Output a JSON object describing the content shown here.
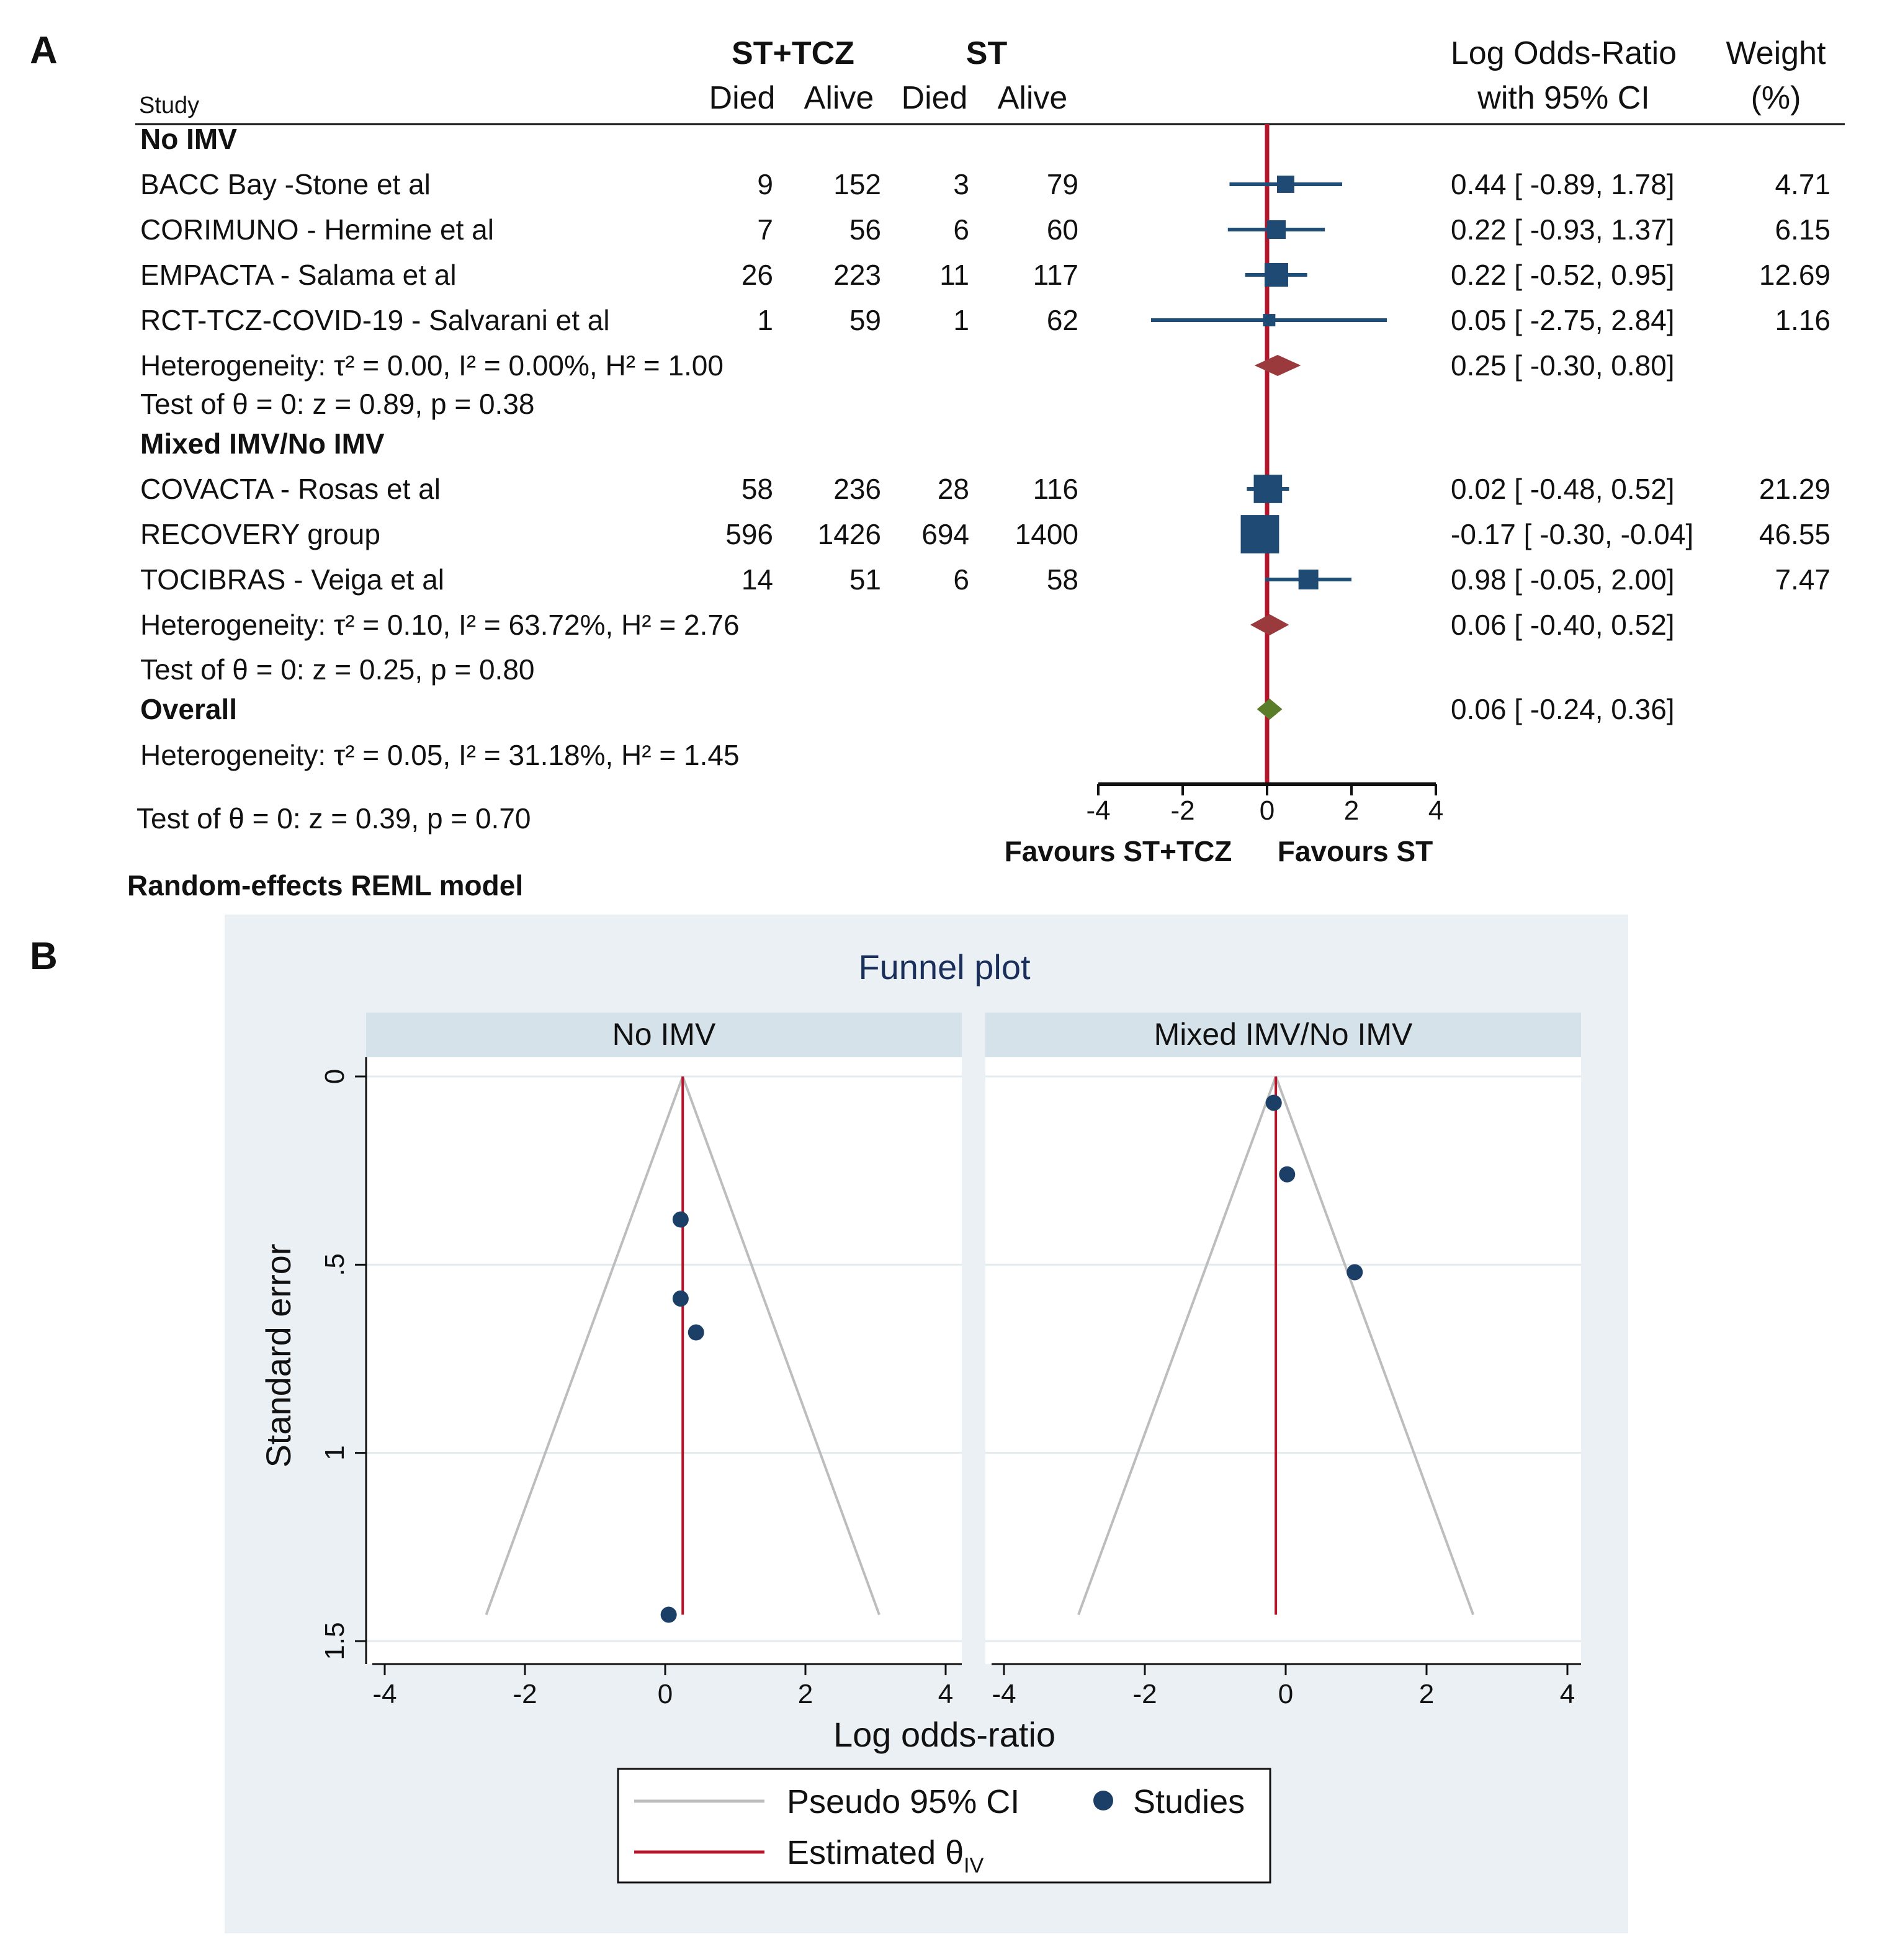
{
  "panelA": {
    "letter": "A",
    "group_header_1": "ST+TCZ",
    "group_header_2": "ST",
    "col_study": "Study",
    "col_died_1": "Died",
    "col_alive_1": "Alive",
    "col_died_2": "Died",
    "col_alive_2": "Alive",
    "col_lor_line1": "Log Odds-Ratio",
    "col_lor_line2": "with 95% CI",
    "col_weight_line1": "Weight",
    "col_weight_line2": "(%)",
    "axis_ticks": [
      "-4",
      "-2",
      "0",
      "2",
      "4"
    ],
    "favours_left": "Favours ST+TCZ",
    "favours_right": "Favours ST",
    "model_note": "Random-effects REML model"
  },
  "panelB": {
    "letter": "B",
    "title": "Funnel plot",
    "ylabel": "Standard error",
    "xlabel": "Log odds-ratio",
    "y_ticks": [
      "0",
      ".5",
      "1",
      "1.5"
    ],
    "x_ticks": [
      "-4",
      "-2",
      "0",
      "2",
      "4"
    ],
    "legend": {
      "ci": "Pseudo 95% CI",
      "studies": "Studies",
      "estimated": "Estimated θ",
      "estimated_sub": "IV"
    },
    "colors": {
      "background": "#eaf0f3",
      "strip": "#d6e2e9",
      "point": "#1b3f66",
      "line": "#b5152b",
      "ci": "#bdbdbd"
    }
  },
  "chart_data": [
    {
      "type": "forest",
      "xlim": [
        -4,
        4
      ],
      "xticks": [
        -4,
        -2,
        0,
        2,
        4
      ],
      "xlabel_left": "Favours ST+TCZ",
      "xlabel_right": "Favours ST",
      "colors": {
        "study": "#1f4e79",
        "subgroup": "#9b3a3d",
        "overall": "#5a7d2a",
        "null_line": "#b5152b"
      },
      "groups": [
        {
          "name": "No IMV",
          "studies": [
            {
              "study": "BACC Bay -Stone et al",
              "died_tcz": "9",
              "alive_tcz": "152",
              "died_st": "3",
              "alive_st": "79",
              "lor": 0.44,
              "lo": -0.89,
              "hi": 1.78,
              "ci_text": "0.44 [ -0.89,   1.78]",
              "weight": 4.71,
              "weight_text": "4.71"
            },
            {
              "study": "CORIMUNO - Hermine et al",
              "died_tcz": "7",
              "alive_tcz": "56",
              "died_st": "6",
              "alive_st": "60",
              "lor": 0.22,
              "lo": -0.93,
              "hi": 1.37,
              "ci_text": "0.22 [ -0.93,   1.37]",
              "weight": 6.15,
              "weight_text": "6.15"
            },
            {
              "study": "EMPACTA - Salama et al",
              "died_tcz": "26",
              "alive_tcz": "223",
              "died_st": "11",
              "alive_st": "117",
              "lor": 0.22,
              "lo": -0.52,
              "hi": 0.95,
              "ci_text": "0.22 [ -0.52,   0.95]",
              "weight": 12.69,
              "weight_text": "12.69"
            },
            {
              "study": "RCT-TCZ-COVID-19 - Salvarani et al",
              "died_tcz": "1",
              "alive_tcz": "59",
              "died_st": "1",
              "alive_st": "62",
              "lor": 0.05,
              "lo": -2.75,
              "hi": 2.84,
              "ci_text": "0.05 [ -2.75,   2.84]",
              "weight": 1.16,
              "weight_text": "1.16"
            }
          ],
          "summary": {
            "lor": 0.25,
            "lo": -0.3,
            "hi": 0.8,
            "ci_text": "0.25 [ -0.30,   0.80]"
          },
          "heterogeneity": "Heterogeneity: τ² = 0.00, I² = 0.00%, H² = 1.00",
          "test": "Test of θ = 0: z = 0.89, p = 0.38"
        },
        {
          "name": "Mixed IMV/No IMV",
          "studies": [
            {
              "study": "COVACTA - Rosas et al",
              "died_tcz": "58",
              "alive_tcz": "236",
              "died_st": "28",
              "alive_st": "116",
              "lor": 0.02,
              "lo": -0.48,
              "hi": 0.52,
              "ci_text": "0.02 [ -0.48,   0.52]",
              "weight": 21.29,
              "weight_text": "21.29"
            },
            {
              "study": "RECOVERY group",
              "died_tcz": "596",
              "alive_tcz": "1426",
              "died_st": "694",
              "alive_st": "1400",
              "lor": -0.17,
              "lo": -0.3,
              "hi": -0.04,
              "ci_text": "-0.17 [ -0.30, -0.04]",
              "weight": 46.55,
              "weight_text": "46.55"
            },
            {
              "study": "TOCIBRAS - Veiga et al",
              "died_tcz": "14",
              "alive_tcz": "51",
              "died_st": "6",
              "alive_st": "58",
              "lor": 0.98,
              "lo": -0.05,
              "hi": 2.0,
              "ci_text": "0.98 [ -0.05,   2.00]",
              "weight": 7.47,
              "weight_text": "7.47"
            }
          ],
          "summary": {
            "lor": 0.06,
            "lo": -0.4,
            "hi": 0.52,
            "ci_text": "0.06 [ -0.40,   0.52]"
          },
          "heterogeneity": "Heterogeneity: τ² = 0.10, I² = 63.72%, H² = 2.76",
          "test": "Test of θ = 0: z = 0.25, p = 0.80"
        }
      ],
      "overall": {
        "name": "Overall",
        "lor": 0.06,
        "lo": -0.24,
        "hi": 0.36,
        "ci_text": "0.06 [ -0.24,   0.36]",
        "heterogeneity": "Heterogeneity: τ² = 0.05, I² = 31.18%, H² = 1.45",
        "test": "Test of θ = 0: z = 0.39, p = 0.70"
      }
    },
    {
      "type": "scatter",
      "title": "Funnel plot",
      "xlabel": "Log odds-ratio",
      "ylabel": "Standard error",
      "xlim": [
        -4.2,
        4.2
      ],
      "ylim": [
        0,
        1.5
      ],
      "y_reversed": true,
      "xticks": [
        -4,
        -2,
        0,
        2,
        4
      ],
      "yticks": [
        0,
        0.5,
        1,
        1.5
      ],
      "panels": [
        {
          "name": "No IMV",
          "theta": 0.25,
          "ci_max_se": 1.43,
          "points": [
            {
              "x": 0.22,
              "y": 0.38
            },
            {
              "x": 0.22,
              "y": 0.59
            },
            {
              "x": 0.44,
              "y": 0.68
            },
            {
              "x": 0.05,
              "y": 1.43
            }
          ]
        },
        {
          "name": "Mixed IMV/No IMV",
          "theta": -0.14,
          "ci_max_se": 1.43,
          "points": [
            {
              "x": -0.17,
              "y": 0.07
            },
            {
              "x": 0.02,
              "y": 0.26
            },
            {
              "x": 0.98,
              "y": 0.52
            }
          ]
        }
      ]
    }
  ]
}
